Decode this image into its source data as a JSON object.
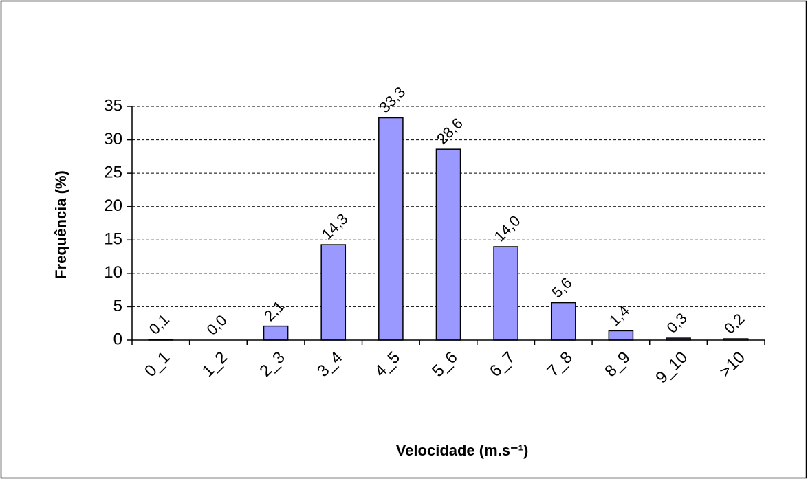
{
  "chart_data": {
    "type": "bar",
    "y_label": "Frequência (%)",
    "x_label": "Velocidade (m.s⁻¹)",
    "categories": [
      "0_1",
      "1_2",
      "2_3",
      "3_4",
      "4_5",
      "5_6",
      "6_7",
      "7_8",
      "8_9",
      "9_10",
      ">10"
    ],
    "values": [
      0.1,
      0.0,
      2.1,
      14.3,
      33.3,
      28.6,
      14.0,
      5.6,
      1.4,
      0.3,
      0.2
    ],
    "value_labels": [
      "0,1",
      "0,0",
      "2,1",
      "14,3",
      "33,3",
      "28,6",
      "14,0",
      "5,6",
      "1,4",
      "0,3",
      "0,2"
    ],
    "color": "#9999ff",
    "ylim": [
      0,
      35
    ],
    "yticks": [
      0,
      5,
      10,
      15,
      20,
      25,
      30,
      35
    ],
    "grid": true
  }
}
